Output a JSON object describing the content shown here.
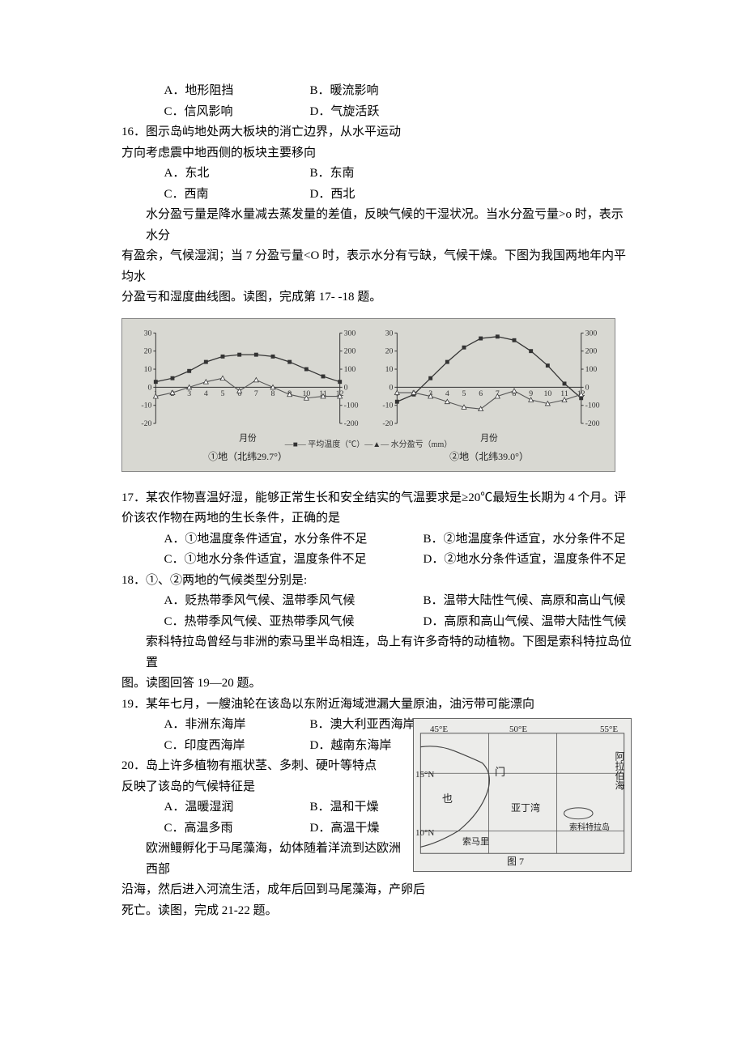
{
  "q15_opts": {
    "A": "A．地形阻挡",
    "B": "B．暖流影响",
    "C": "C．信风影响",
    "D": "D．气旋活跃"
  },
  "q16": {
    "stem1": "16．图示岛屿地处两大板块的消亡边界，从水平运动",
    "stem2": "方向考虑震中地西侧的板块主要移向",
    "A": "A．东北",
    "B": "B．东南",
    "C": "C．西南",
    "D": "D．西北"
  },
  "passage17": {
    "l1": "水分盈亏量是降水量减去蒸发量的差值，反映气候的干湿状况。当水分盈亏量>o 时，表示水分",
    "l2": "有盈余，气候湿润；当 7 分盈亏量<O 时，表示水分有亏缺，气候干燥。下图为我国两地年内平均水",
    "l3": "分盈亏和湿度曲线图。读图，完成第 17- -18 题。"
  },
  "chart": {
    "left_caption": "①地（北纬29.7°）",
    "right_caption": "②地（北纬39.0°）",
    "legend": "—■— 平均温度（℃）—▲— 水分盈亏（mm）",
    "month_label": "月份",
    "left": {
      "y1_ticks": [
        -20,
        -10,
        0,
        10,
        20,
        30
      ],
      "y2_ticks": [
        -200,
        -100,
        0,
        100,
        200,
        300
      ],
      "x_labels": [
        "1",
        "2",
        "3",
        "4",
        "5",
        "6",
        "7",
        "8",
        "9",
        "10",
        "11",
        "12"
      ],
      "temp": [
        3,
        5,
        9,
        14,
        17,
        18,
        18,
        17,
        14,
        10,
        6,
        3
      ],
      "water": [
        -5,
        -3,
        0,
        3,
        5,
        -2,
        4,
        0,
        -4,
        -6,
        -5,
        -5
      ]
    },
    "right": {
      "y1_ticks": [
        -20,
        -10,
        0,
        10,
        20,
        30
      ],
      "y2_ticks": [
        -200,
        -100,
        0,
        100,
        200,
        300
      ],
      "x_labels": [
        "1",
        "2",
        "3",
        "4",
        "5",
        "6",
        "7",
        "8",
        "9",
        "10",
        "11",
        "12"
      ],
      "temp": [
        -8,
        -4,
        5,
        14,
        22,
        27,
        28,
        26,
        20,
        12,
        2,
        -6
      ],
      "water": [
        -3,
        -3,
        -5,
        -8,
        -11,
        -12,
        -5,
        -2,
        -7,
        -9,
        -7,
        -4
      ]
    },
    "colors": {
      "line": "#333333",
      "bg": "#d8d8d2",
      "grid": "#888888"
    }
  },
  "q17": {
    "stem1": "17．某农作物喜温好湿，能够正常生长和安全结实的气温要求是≥20℃最短生长期为 4 个月。评价该农作物在两地的生长条件，正确的是",
    "A": "A．①地温度条件适宜，水分条件不足",
    "B": "B．②地温度条件适宜，水分条件不足",
    "C": "C．①地水分条件适宜，温度条件不足",
    "D": "D．②地水分条件适宜，温度条件不足"
  },
  "q18": {
    "stem": "18．①、②两地的气候类型分别是:",
    "A": "A．贬热带季风气候、温带季风气候",
    "B": "B．温带大陆性气候、高原和高山气候",
    "C": "C．热带季风气候、亚热带季风气候",
    "D": "D．高原和高山气候、温带大陆性气候"
  },
  "passage19": {
    "l1": "索科特拉岛曾经与非洲的索马里半岛相连，岛上有许多奇特的动植物。下图是索科特拉岛位置",
    "l2": "图。读图回答 19—20 题。"
  },
  "q19": {
    "stem": "19．某年七月，一艘油轮在该岛以东附近海域泄漏大量原油，油污带可能漂向",
    "A": "A．非洲东海岸",
    "B": "B．澳大利亚西海岸",
    "C": "C．印度西海岸",
    "D": "D．越南东海岸"
  },
  "q20": {
    "stem1": "20．岛上许多植物有瓶状茎、多刺、硬叶等特点",
    "stem2": "反映了该岛的气候特征是",
    "A": "A．温暖湿润",
    "B": "B．温和干燥",
    "C": "C．高温多雨",
    "D": "D．高温干燥"
  },
  "passage21": {
    "l1": "欧洲鳗孵化于马尾藻海，幼体随着洋流到达欧洲西部",
    "l2": "沿海，然后进入河流生活，成年后回到马尾藻海，产卵后",
    "l3": "死亡。读图，完成 21-22 题。"
  },
  "map": {
    "lon": {
      "a": "45°E",
      "b": "50°E",
      "c": "55°E"
    },
    "lat": {
      "a": "15°N",
      "b": "10°N"
    },
    "labels": {
      "yemen": "也",
      "gate": "门",
      "gulf": "亚丁湾",
      "arabia": "阿拉伯海",
      "socotra": "索科特拉岛",
      "somali": "索马里",
      "caption": "图 7"
    }
  }
}
